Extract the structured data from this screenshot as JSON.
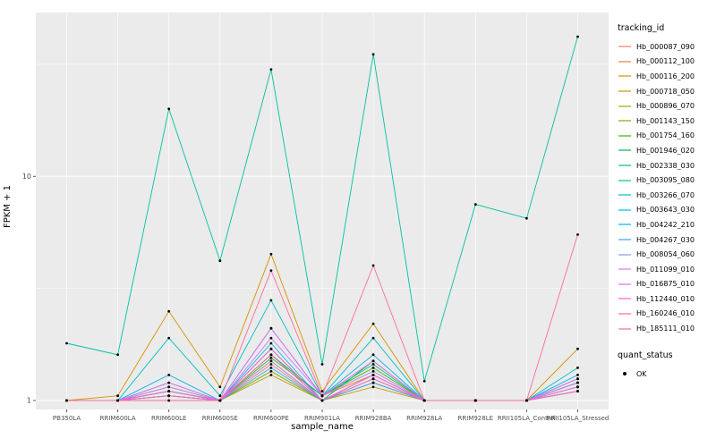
{
  "figure": {
    "y_axis_title": "FPKM + 1",
    "x_axis_title": "sample_name",
    "legend1_title": "tracking_id",
    "legend2_title": "quant_status",
    "quant_status_label": "OK"
  },
  "colors": {
    "panel_bg": "#EBEBEB",
    "grid": "#FFFFFF",
    "tick_text": "#4D4D4D",
    "point": "#000000"
  },
  "chart_data": {
    "type": "line",
    "title": "",
    "xlabel": "sample_name",
    "ylabel": "FPKM + 1",
    "y_scale": "log10",
    "ylim": [
      1,
      50
    ],
    "y_ticks": [
      1,
      10
    ],
    "grid": true,
    "legend_position": "right",
    "point_shape": "filled-circle",
    "point_color": "#000000",
    "quant_status": "OK",
    "categories": [
      "PB350LA",
      "RRIM600LA",
      "RRIM600LE",
      "RRIM600SE",
      "RRIM600PE",
      "RRIM901LA",
      "RRIM928BA",
      "RRIM928LA",
      "RRIM928LE",
      "RRII105LA_Control",
      "RRII105LA_Stressed"
    ],
    "series": [
      {
        "name": "Hb_000087_090",
        "color": "#F8766D",
        "values": [
          1,
          1,
          1,
          1,
          1.45,
          1,
          1.2,
          1,
          1,
          1,
          1.15
        ]
      },
      {
        "name": "Hb_000112_100",
        "color": "#EA8331",
        "values": [
          1,
          1,
          1.1,
          1,
          1.6,
          1.05,
          1.3,
          1,
          1,
          1,
          1.2
        ]
      },
      {
        "name": "Hb_000116_200",
        "color": "#D89000",
        "values": [
          1,
          1.05,
          2.5,
          1.15,
          4.5,
          1.1,
          2.2,
          1,
          1,
          1,
          1.7
        ]
      },
      {
        "name": "Hb_000718_050",
        "color": "#C09B00",
        "values": [
          1,
          1,
          1.05,
          1,
          1.3,
          1,
          1.15,
          1,
          1,
          1,
          1.1
        ]
      },
      {
        "name": "Hb_000896_070",
        "color": "#A3A500",
        "values": [
          1,
          1,
          1.1,
          1,
          1.5,
          1,
          1.25,
          1,
          1,
          1,
          1.15
        ]
      },
      {
        "name": "Hb_001143_150",
        "color": "#7CAE00",
        "values": [
          1,
          1,
          1.05,
          1,
          1.35,
          1,
          1.2,
          1,
          1,
          1,
          1.1
        ]
      },
      {
        "name": "Hb_001754_160",
        "color": "#39B600",
        "values": [
          1,
          1,
          1.15,
          1,
          1.55,
          1.05,
          1.4,
          1,
          1,
          1,
          1.2
        ]
      },
      {
        "name": "Hb_001946_020",
        "color": "#00BB4E",
        "values": [
          1,
          1,
          1.1,
          1,
          1.7,
          1,
          1.5,
          1,
          1,
          1,
          1.25
        ]
      },
      {
        "name": "Hb_002338_030",
        "color": "#00BF7D",
        "values": [
          1,
          1,
          1.2,
          1,
          1.6,
          1.05,
          1.45,
          1,
          1,
          1,
          1.2
        ]
      },
      {
        "name": "Hb_003095_080",
        "color": "#00C1A3",
        "values": [
          1.8,
          1.6,
          20,
          4.2,
          30,
          1.45,
          35,
          1.22,
          7.5,
          6.5,
          42
        ]
      },
      {
        "name": "Hb_003266_070",
        "color": "#00BFC4",
        "values": [
          1,
          1,
          1.9,
          1.05,
          2.8,
          1.05,
          1.9,
          1,
          1,
          1,
          1.4
        ]
      },
      {
        "name": "Hb_003643_030",
        "color": "#00BAE0",
        "values": [
          1,
          1,
          1.1,
          1,
          1.8,
          1,
          1.3,
          1,
          1,
          1,
          1.2
        ]
      },
      {
        "name": "Hb_004242_210",
        "color": "#00B0F6",
        "values": [
          1,
          1,
          1.3,
          1,
          2.1,
          1.05,
          1.6,
          1,
          1,
          1,
          1.3
        ]
      },
      {
        "name": "Hb_004267_030",
        "color": "#35A2FF",
        "values": [
          1,
          1,
          1.05,
          1,
          1.4,
          1,
          1.2,
          1,
          1,
          1,
          1.1
        ]
      },
      {
        "name": "Hb_008054_060",
        "color": "#9590FF",
        "values": [
          1,
          1,
          1.1,
          1,
          1.5,
          1,
          1.25,
          1,
          1,
          1,
          1.15
        ]
      },
      {
        "name": "Hb_011099_010",
        "color": "#C77CFF",
        "values": [
          1,
          1,
          1.15,
          1,
          1.9,
          1.05,
          1.35,
          1,
          1,
          1,
          1.2
        ]
      },
      {
        "name": "Hb_016875_010",
        "color": "#E76BF3",
        "values": [
          1,
          1,
          1.2,
          1,
          2.1,
          1.05,
          1.5,
          1,
          1,
          1,
          1.25
        ]
      },
      {
        "name": "Hb_112440_010",
        "color": "#FA62DB",
        "values": [
          1,
          1,
          1.1,
          1,
          1.7,
          1,
          1.3,
          1,
          1,
          1,
          1.15
        ]
      },
      {
        "name": "Hb_160246_010",
        "color": "#FF62BC",
        "values": [
          1,
          1,
          1.05,
          1,
          1.6,
          1,
          1.25,
          1,
          1,
          1,
          1.1
        ]
      },
      {
        "name": "Hb_185111_010",
        "color": "#FF6A98",
        "values": [
          1,
          1,
          1,
          1,
          3.8,
          1.05,
          4.0,
          1,
          1,
          1,
          5.5
        ]
      }
    ]
  }
}
